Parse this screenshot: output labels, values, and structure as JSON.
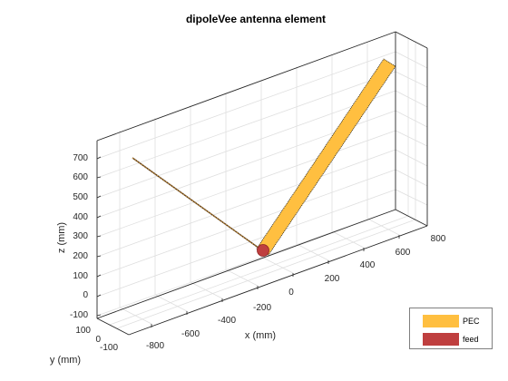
{
  "title": "dipoleVee antenna element",
  "axes": {
    "x_label": "x (mm)",
    "y_label": "y (mm)",
    "z_label": "z (mm)",
    "x_ticks": [
      "-800",
      "-600",
      "-400",
      "-200",
      "0",
      "200",
      "400",
      "600",
      "800"
    ],
    "y_ticks": [
      "100",
      "0",
      "-100"
    ],
    "z_ticks": [
      "700",
      "600",
      "500",
      "400",
      "300",
      "200",
      "100",
      "0",
      "-100"
    ]
  },
  "legend": {
    "items": [
      {
        "label": "PEC",
        "color": "#FFBF40"
      },
      {
        "label": "feed",
        "color": "#BF3F3F"
      }
    ]
  },
  "colors": {
    "pec": "#FFBF40",
    "feed": "#BF3F3F",
    "feed_edge": "#8F2020",
    "box": "#262626",
    "grid": "#DFDFDF"
  }
}
